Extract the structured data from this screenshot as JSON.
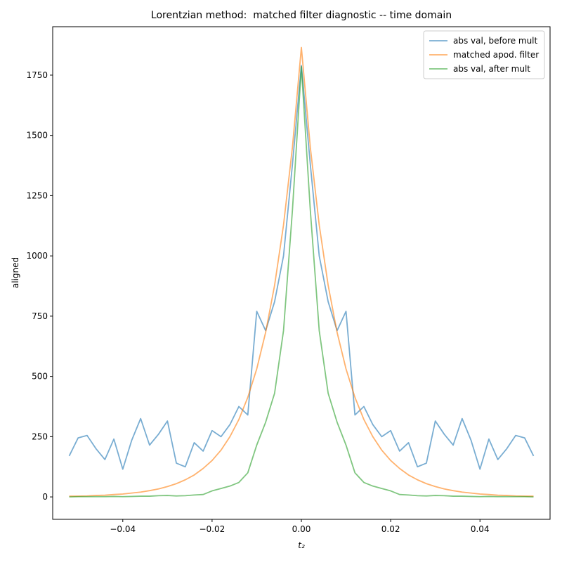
{
  "chart_data": {
    "type": "line",
    "title": "Lorentzian method:  matched filter diagnostic -- time domain",
    "xlabel": "t₂",
    "ylabel": "aligned",
    "x": [
      -0.052,
      -0.05,
      -0.048,
      -0.046,
      -0.044,
      -0.042,
      -0.04,
      -0.038,
      -0.036,
      -0.034,
      -0.032,
      -0.03,
      -0.028,
      -0.026,
      -0.024,
      -0.022,
      -0.02,
      -0.018,
      -0.016,
      -0.014,
      -0.012,
      -0.01,
      -0.008,
      -0.006,
      -0.004,
      -0.002,
      0,
      0.002,
      0.004,
      0.006,
      0.008,
      0.01,
      0.012,
      0.014,
      0.016,
      0.018,
      0.02,
      0.022,
      0.024,
      0.026,
      0.028,
      0.03,
      0.032,
      0.034,
      0.036,
      0.038,
      0.04,
      0.042,
      0.044,
      0.046,
      0.048,
      0.05,
      0.052
    ],
    "series": [
      {
        "name": "abs val, before mult",
        "color": "#1f77b4",
        "values": [
          170,
          245,
          255,
          200,
          155,
          240,
          115,
          235,
          325,
          215,
          260,
          315,
          140,
          125,
          225,
          190,
          275,
          250,
          300,
          375,
          340,
          770,
          690,
          810,
          1000,
          1380,
          1790,
          1380,
          1000,
          810,
          690,
          770,
          340,
          375,
          300,
          250,
          275,
          190,
          225,
          125,
          140,
          315,
          260,
          215,
          325,
          235,
          115,
          240,
          155,
          200,
          255,
          245,
          170
        ]
      },
      {
        "name": "matched apod. filter",
        "color": "#ff7f0e",
        "values": [
          3,
          3,
          4,
          6,
          7,
          10,
          12,
          16,
          20,
          26,
          33,
          43,
          55,
          71,
          91,
          118,
          151,
          194,
          250,
          321,
          413,
          531,
          683,
          878,
          1128,
          1451,
          1865,
          1451,
          1128,
          878,
          683,
          531,
          413,
          321,
          250,
          194,
          151,
          118,
          91,
          71,
          55,
          43,
          33,
          26,
          20,
          16,
          12,
          10,
          7,
          6,
          4,
          3,
          3
        ]
      },
      {
        "name": "abs val, after mult",
        "color": "#2ca02c",
        "values": [
          0,
          1,
          1,
          1,
          1,
          2,
          1,
          2,
          3,
          3,
          5,
          6,
          4,
          5,
          8,
          10,
          25,
          35,
          45,
          60,
          100,
          215,
          310,
          430,
          690,
          1190,
          1785,
          1190,
          690,
          430,
          310,
          215,
          100,
          60,
          45,
          35,
          25,
          10,
          8,
          5,
          4,
          6,
          5,
          3,
          3,
          2,
          1,
          2,
          1,
          1,
          1,
          1,
          0
        ]
      }
    ],
    "xlim": [
      -0.0557,
      0.0557
    ],
    "ylim": [
      -93,
      1951
    ],
    "xticks": [
      {
        "value": -0.04,
        "label": "−0.04"
      },
      {
        "value": -0.02,
        "label": "−0.02"
      },
      {
        "value": 0,
        "label": "0.00"
      },
      0.02,
      0.04
    ],
    "yticks": [
      0,
      250,
      500,
      750,
      1000,
      1250,
      1500,
      1750
    ],
    "legend": "upper right",
    "grid": false
  }
}
